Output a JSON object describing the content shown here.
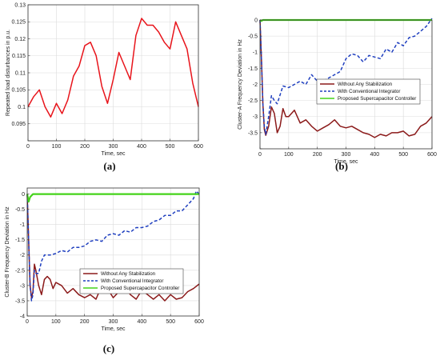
{
  "chart_data": [
    {
      "panel_label": "(a)",
      "type": "line",
      "title": "",
      "xlabel": "Time, sec",
      "ylabel": "Repeated load disturbances in p.u.",
      "xlim": [
        0,
        600
      ],
      "ylim": [
        0.09,
        0.13
      ],
      "xticks": [
        0,
        100,
        200,
        300,
        400,
        500,
        600
      ],
      "yticks": [
        0.09,
        0.095,
        0.1,
        0.105,
        0.11,
        0.115,
        0.12,
        0.125,
        0.13
      ],
      "ytick_labels": [
        "",
        "0.095",
        "0.1",
        "0.105",
        "0.11",
        "0.115",
        "0.12",
        "0.125",
        "0.13"
      ],
      "grid": true,
      "series": [
        {
          "color": "#e8141b",
          "x": [
            0,
            20,
            40,
            60,
            80,
            100,
            120,
            140,
            160,
            180,
            200,
            220,
            240,
            260,
            280,
            300,
            320,
            340,
            360,
            380,
            400,
            420,
            440,
            460,
            480,
            500,
            520,
            540,
            560,
            580,
            600
          ],
          "y": [
            0.1,
            0.103,
            0.105,
            0.1,
            0.097,
            0.101,
            0.098,
            0.102,
            0.109,
            0.112,
            0.118,
            0.119,
            0.115,
            0.106,
            0.101,
            0.108,
            0.116,
            0.112,
            0.108,
            0.121,
            0.126,
            0.124,
            0.124,
            0.122,
            0.119,
            0.117,
            0.125,
            0.121,
            0.117,
            0.107,
            0.1
          ]
        }
      ]
    },
    {
      "panel_label": "(b)",
      "type": "line",
      "title": "",
      "xlabel": "Time, sec",
      "ylabel": "Cluster-A Frequency Deviation in Hz",
      "xlim": [
        0,
        600
      ],
      "ylim": [
        -4,
        0
      ],
      "xticks": [
        0,
        100,
        200,
        300,
        400,
        500,
        600
      ],
      "yticks": [
        -4,
        -3.5,
        -3,
        -2.5,
        -2,
        -1.5,
        -1,
        -0.5,
        0
      ],
      "ytick_labels": [
        "",
        "-3.5",
        "-3",
        "-2.5",
        "-2",
        "-1.5",
        "-1",
        "-0.5",
        "0"
      ],
      "grid": true,
      "legend_position": "center-right",
      "series": [
        {
          "name": "Without Any Stabilization",
          "color": "#8b1a1a",
          "style": "solid",
          "x": [
            0,
            5,
            10,
            15,
            20,
            30,
            40,
            50,
            60,
            70,
            80,
            90,
            100,
            120,
            140,
            160,
            180,
            200,
            220,
            240,
            260,
            280,
            300,
            320,
            340,
            360,
            380,
            400,
            420,
            440,
            460,
            480,
            500,
            520,
            540,
            560,
            580,
            600
          ],
          "y": [
            0,
            -1.2,
            -2.6,
            -3.4,
            -3.58,
            -3.3,
            -2.7,
            -2.9,
            -3.5,
            -3.3,
            -2.75,
            -3.0,
            -3.0,
            -2.8,
            -3.2,
            -3.1,
            -3.3,
            -3.45,
            -3.35,
            -3.25,
            -3.1,
            -3.3,
            -3.35,
            -3.3,
            -3.4,
            -3.5,
            -3.55,
            -3.65,
            -3.55,
            -3.6,
            -3.5,
            -3.5,
            -3.45,
            -3.6,
            -3.55,
            -3.3,
            -3.2,
            -3.0
          ]
        },
        {
          "name": "With Conventional Integrator",
          "color": "#1f3fbf",
          "style": "dashed",
          "x": [
            0,
            5,
            10,
            15,
            20,
            30,
            40,
            50,
            60,
            80,
            100,
            120,
            140,
            160,
            180,
            200,
            220,
            240,
            260,
            280,
            300,
            320,
            340,
            360,
            380,
            400,
            420,
            440,
            460,
            480,
            500,
            520,
            540,
            560,
            580,
            600
          ],
          "y": [
            0,
            -1.2,
            -2.6,
            -3.3,
            -3.55,
            -3.0,
            -2.35,
            -2.5,
            -2.6,
            -2.05,
            -2.1,
            -2.0,
            -1.9,
            -2.0,
            -1.7,
            -1.9,
            -1.9,
            -1.8,
            -1.7,
            -1.6,
            -1.2,
            -1.05,
            -1.1,
            -1.3,
            -1.1,
            -1.15,
            -1.2,
            -0.9,
            -1.0,
            -0.7,
            -0.8,
            -0.55,
            -0.5,
            -0.35,
            -0.2,
            0.05
          ]
        },
        {
          "name": "Proposed Supercapacitor Controller",
          "color": "#44d31a",
          "style": "solid",
          "x": [
            0,
            5,
            10,
            600
          ],
          "y": [
            0,
            -0.03,
            0.0,
            0.0
          ]
        }
      ]
    },
    {
      "panel_label": "(c)",
      "type": "line",
      "title": "",
      "xlabel": "Time, sec",
      "ylabel": "Cluster-B Frequency Deviation in Hz",
      "xlim": [
        0,
        600
      ],
      "ylim": [
        -4,
        0.2
      ],
      "xticks": [
        0,
        100,
        200,
        300,
        400,
        500,
        600
      ],
      "yticks": [
        -4,
        -3.5,
        -3,
        -2.5,
        -2,
        -1.5,
        -1,
        -0.5,
        0
      ],
      "ytick_labels": [
        "-4",
        "-3.5",
        "-3",
        "-2.5",
        "-2",
        "-1.5",
        "-1",
        "-0.5",
        "0"
      ],
      "grid": true,
      "legend_position": "lower-left",
      "series": [
        {
          "name": "Without Any Stabilization",
          "color": "#8b1a1a",
          "style": "solid",
          "x": [
            0,
            5,
            10,
            15,
            20,
            25,
            30,
            40,
            50,
            60,
            70,
            80,
            90,
            100,
            120,
            140,
            160,
            180,
            200,
            220,
            240,
            260,
            280,
            300,
            320,
            340,
            360,
            380,
            400,
            420,
            440,
            460,
            480,
            500,
            520,
            540,
            560,
            580,
            600
          ],
          "y": [
            0,
            -1.5,
            -3.0,
            -3.4,
            -3.2,
            -2.3,
            -2.5,
            -3.0,
            -3.3,
            -2.8,
            -2.7,
            -2.8,
            -3.1,
            -2.9,
            -3.0,
            -3.25,
            -3.1,
            -3.3,
            -3.4,
            -3.3,
            -3.45,
            -3.0,
            -3.1,
            -3.4,
            -3.2,
            -3.0,
            -3.3,
            -3.45,
            -3.15,
            -3.3,
            -3.45,
            -3.3,
            -3.5,
            -3.3,
            -3.45,
            -3.4,
            -3.2,
            -3.1,
            -2.95
          ]
        },
        {
          "name": "With Conventional Integrator",
          "color": "#1f3fbf",
          "style": "dashed",
          "x": [
            0,
            5,
            10,
            15,
            20,
            25,
            30,
            40,
            50,
            60,
            80,
            100,
            120,
            140,
            160,
            180,
            200,
            220,
            240,
            260,
            280,
            300,
            320,
            340,
            360,
            380,
            400,
            420,
            440,
            460,
            480,
            500,
            520,
            540,
            560,
            580,
            590,
            600
          ],
          "y": [
            0,
            -1.5,
            -3.0,
            -3.5,
            -3.3,
            -2.5,
            -2.6,
            -2.6,
            -2.2,
            -2.0,
            -2.0,
            -1.95,
            -1.85,
            -1.9,
            -1.75,
            -1.75,
            -1.7,
            -1.55,
            -1.5,
            -1.55,
            -1.35,
            -1.3,
            -1.35,
            -1.2,
            -1.25,
            -1.1,
            -1.1,
            -1.05,
            -0.9,
            -0.85,
            -0.7,
            -0.7,
            -0.55,
            -0.55,
            -0.35,
            -0.15,
            0.1,
            0.0
          ]
        },
        {
          "name": "Proposed Supercapacitor Controller",
          "color": "#44d31a",
          "style": "solid",
          "x": [
            0,
            5,
            10,
            20,
            600
          ],
          "y": [
            0,
            -0.25,
            -0.1,
            0.0,
            0.0
          ]
        }
      ]
    }
  ]
}
